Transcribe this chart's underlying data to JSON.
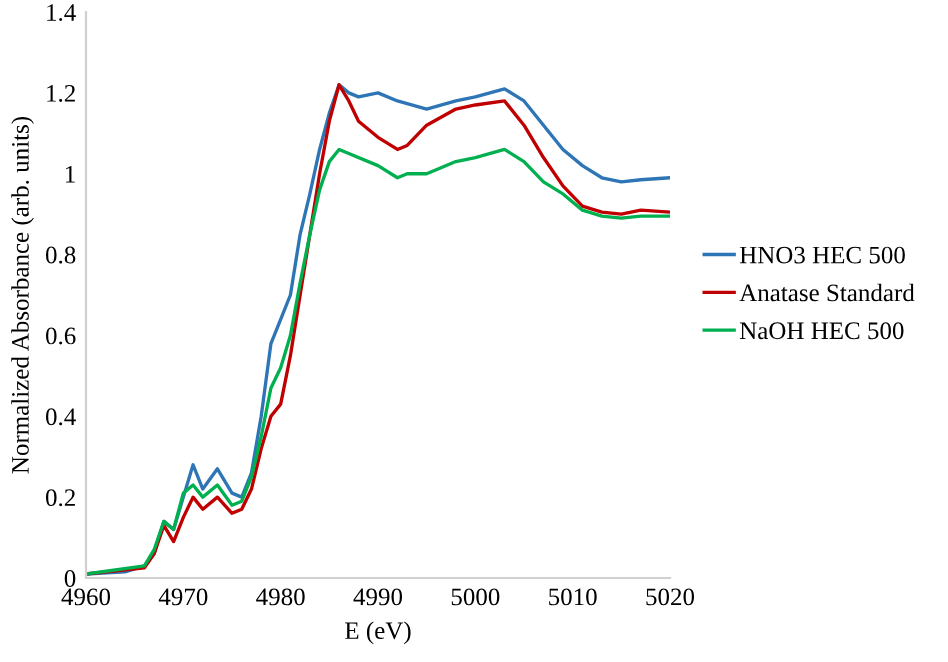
{
  "chart_data": {
    "type": "line",
    "xlabel": "E (eV)",
    "ylabel": "Normalized Absorbance (arb. units)",
    "xlim": [
      4960,
      5020
    ],
    "xticks": [
      4960,
      4970,
      4980,
      4990,
      5000,
      5010,
      5020
    ],
    "ylim": [
      0,
      1.4
    ],
    "yticks": [
      0,
      0.2,
      0.4,
      0.6,
      0.8,
      1,
      1.2,
      1.4
    ],
    "grid": false,
    "legend": "right",
    "marker": "none",
    "line_style": "solid",
    "series": [
      {
        "name": "HNO3 HEC 500",
        "color": "#2e75b6",
        "x": [
          4960,
          4964,
          4966,
          4967,
          4968,
          4969,
          4970,
          4971,
          4972,
          4973.5,
          4975,
          4976,
          4977,
          4978,
          4979,
          4980,
          4981,
          4982,
          4983,
          4984,
          4985,
          4986,
          4987,
          4988,
          4990,
          4992,
          4995,
          4998,
          5000,
          5003,
          5005,
          5007,
          5009,
          5011,
          5013,
          5015,
          5017,
          5020
        ],
        "values": [
          0.01,
          0.015,
          0.03,
          0.06,
          0.14,
          0.12,
          0.2,
          0.28,
          0.22,
          0.27,
          0.21,
          0.2,
          0.26,
          0.4,
          0.58,
          0.64,
          0.7,
          0.85,
          0.95,
          1.06,
          1.15,
          1.22,
          1.2,
          1.19,
          1.2,
          1.18,
          1.16,
          1.18,
          1.19,
          1.21,
          1.18,
          1.12,
          1.06,
          1.02,
          0.99,
          0.98,
          0.985,
          0.99
        ]
      },
      {
        "name": "Anatase Standard",
        "color": "#c00000",
        "x": [
          4960,
          4966,
          4967,
          4968,
          4969,
          4970,
          4971,
          4972,
          4973.5,
          4975,
          4976,
          4977,
          4978,
          4979,
          4980,
          4981,
          4982,
          4983,
          4984,
          4985,
          4986,
          4987,
          4988,
          4990,
          4992,
          4993,
          4995,
          4998,
          5000,
          5003,
          5005,
          5007,
          5009,
          5011,
          5013,
          5015,
          5017,
          5020
        ],
        "values": [
          0.01,
          0.025,
          0.06,
          0.13,
          0.09,
          0.15,
          0.2,
          0.17,
          0.2,
          0.16,
          0.17,
          0.22,
          0.32,
          0.4,
          0.43,
          0.55,
          0.7,
          0.85,
          1.0,
          1.13,
          1.22,
          1.18,
          1.13,
          1.09,
          1.06,
          1.07,
          1.12,
          1.16,
          1.17,
          1.18,
          1.12,
          1.04,
          0.97,
          0.92,
          0.905,
          0.9,
          0.91,
          0.905
        ]
      },
      {
        "name": "NaOH HEC 500",
        "color": "#00b050",
        "x": [
          4960,
          4966,
          4967,
          4968,
          4969,
          4970,
          4971,
          4972,
          4973.5,
          4975,
          4976,
          4977,
          4978,
          4979,
          4980,
          4981,
          4982,
          4983,
          4984,
          4985,
          4986,
          4987,
          4990,
          4992,
          4993,
          4995,
          4998,
          5000,
          5003,
          5005,
          5007,
          5009,
          5011,
          5013,
          5015,
          5017,
          5020
        ],
        "values": [
          0.01,
          0.03,
          0.07,
          0.14,
          0.12,
          0.21,
          0.23,
          0.2,
          0.23,
          0.18,
          0.19,
          0.25,
          0.35,
          0.47,
          0.52,
          0.6,
          0.73,
          0.85,
          0.96,
          1.03,
          1.06,
          1.05,
          1.02,
          0.99,
          1.0,
          1.0,
          1.03,
          1.04,
          1.06,
          1.03,
          0.98,
          0.95,
          0.91,
          0.895,
          0.89,
          0.895,
          0.895
        ]
      }
    ]
  }
}
